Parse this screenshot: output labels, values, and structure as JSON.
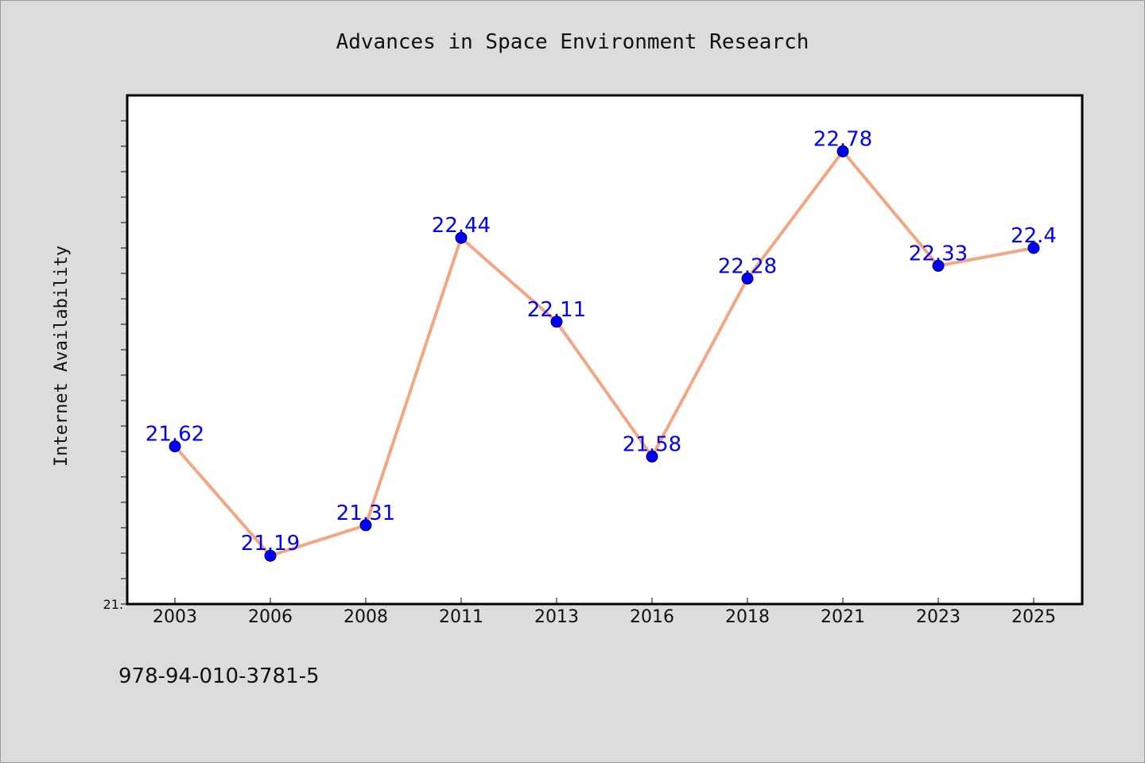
{
  "chart_data": {
    "type": "line",
    "title": "Advances in Space Environment Research",
    "xlabel": "",
    "ylabel": "Internet Availability",
    "categories": [
      "2003",
      "2006",
      "2008",
      "2011",
      "2013",
      "2016",
      "2018",
      "2021",
      "2023",
      "2025"
    ],
    "values": [
      21.62,
      21.19,
      21.31,
      22.44,
      22.11,
      21.58,
      22.28,
      22.78,
      22.33,
      22.4
    ],
    "data_labels": [
      "21.62",
      "21.19",
      "21.31",
      "22.44",
      "22.11",
      "21.58",
      "22.28",
      "22.78",
      "22.33",
      "22.4"
    ],
    "y_tick_label": "21.",
    "ylim": [
      21.0,
      23.0
    ],
    "grid": false,
    "legend": "none",
    "colors": {
      "line": "#f4a582",
      "marker": "#0000ff",
      "data_label": "#0000ff",
      "plot_background": "#ffffff",
      "page_background": "#dcdcdc"
    }
  },
  "footer": {
    "isbn": "978-94-010-3781-5"
  }
}
